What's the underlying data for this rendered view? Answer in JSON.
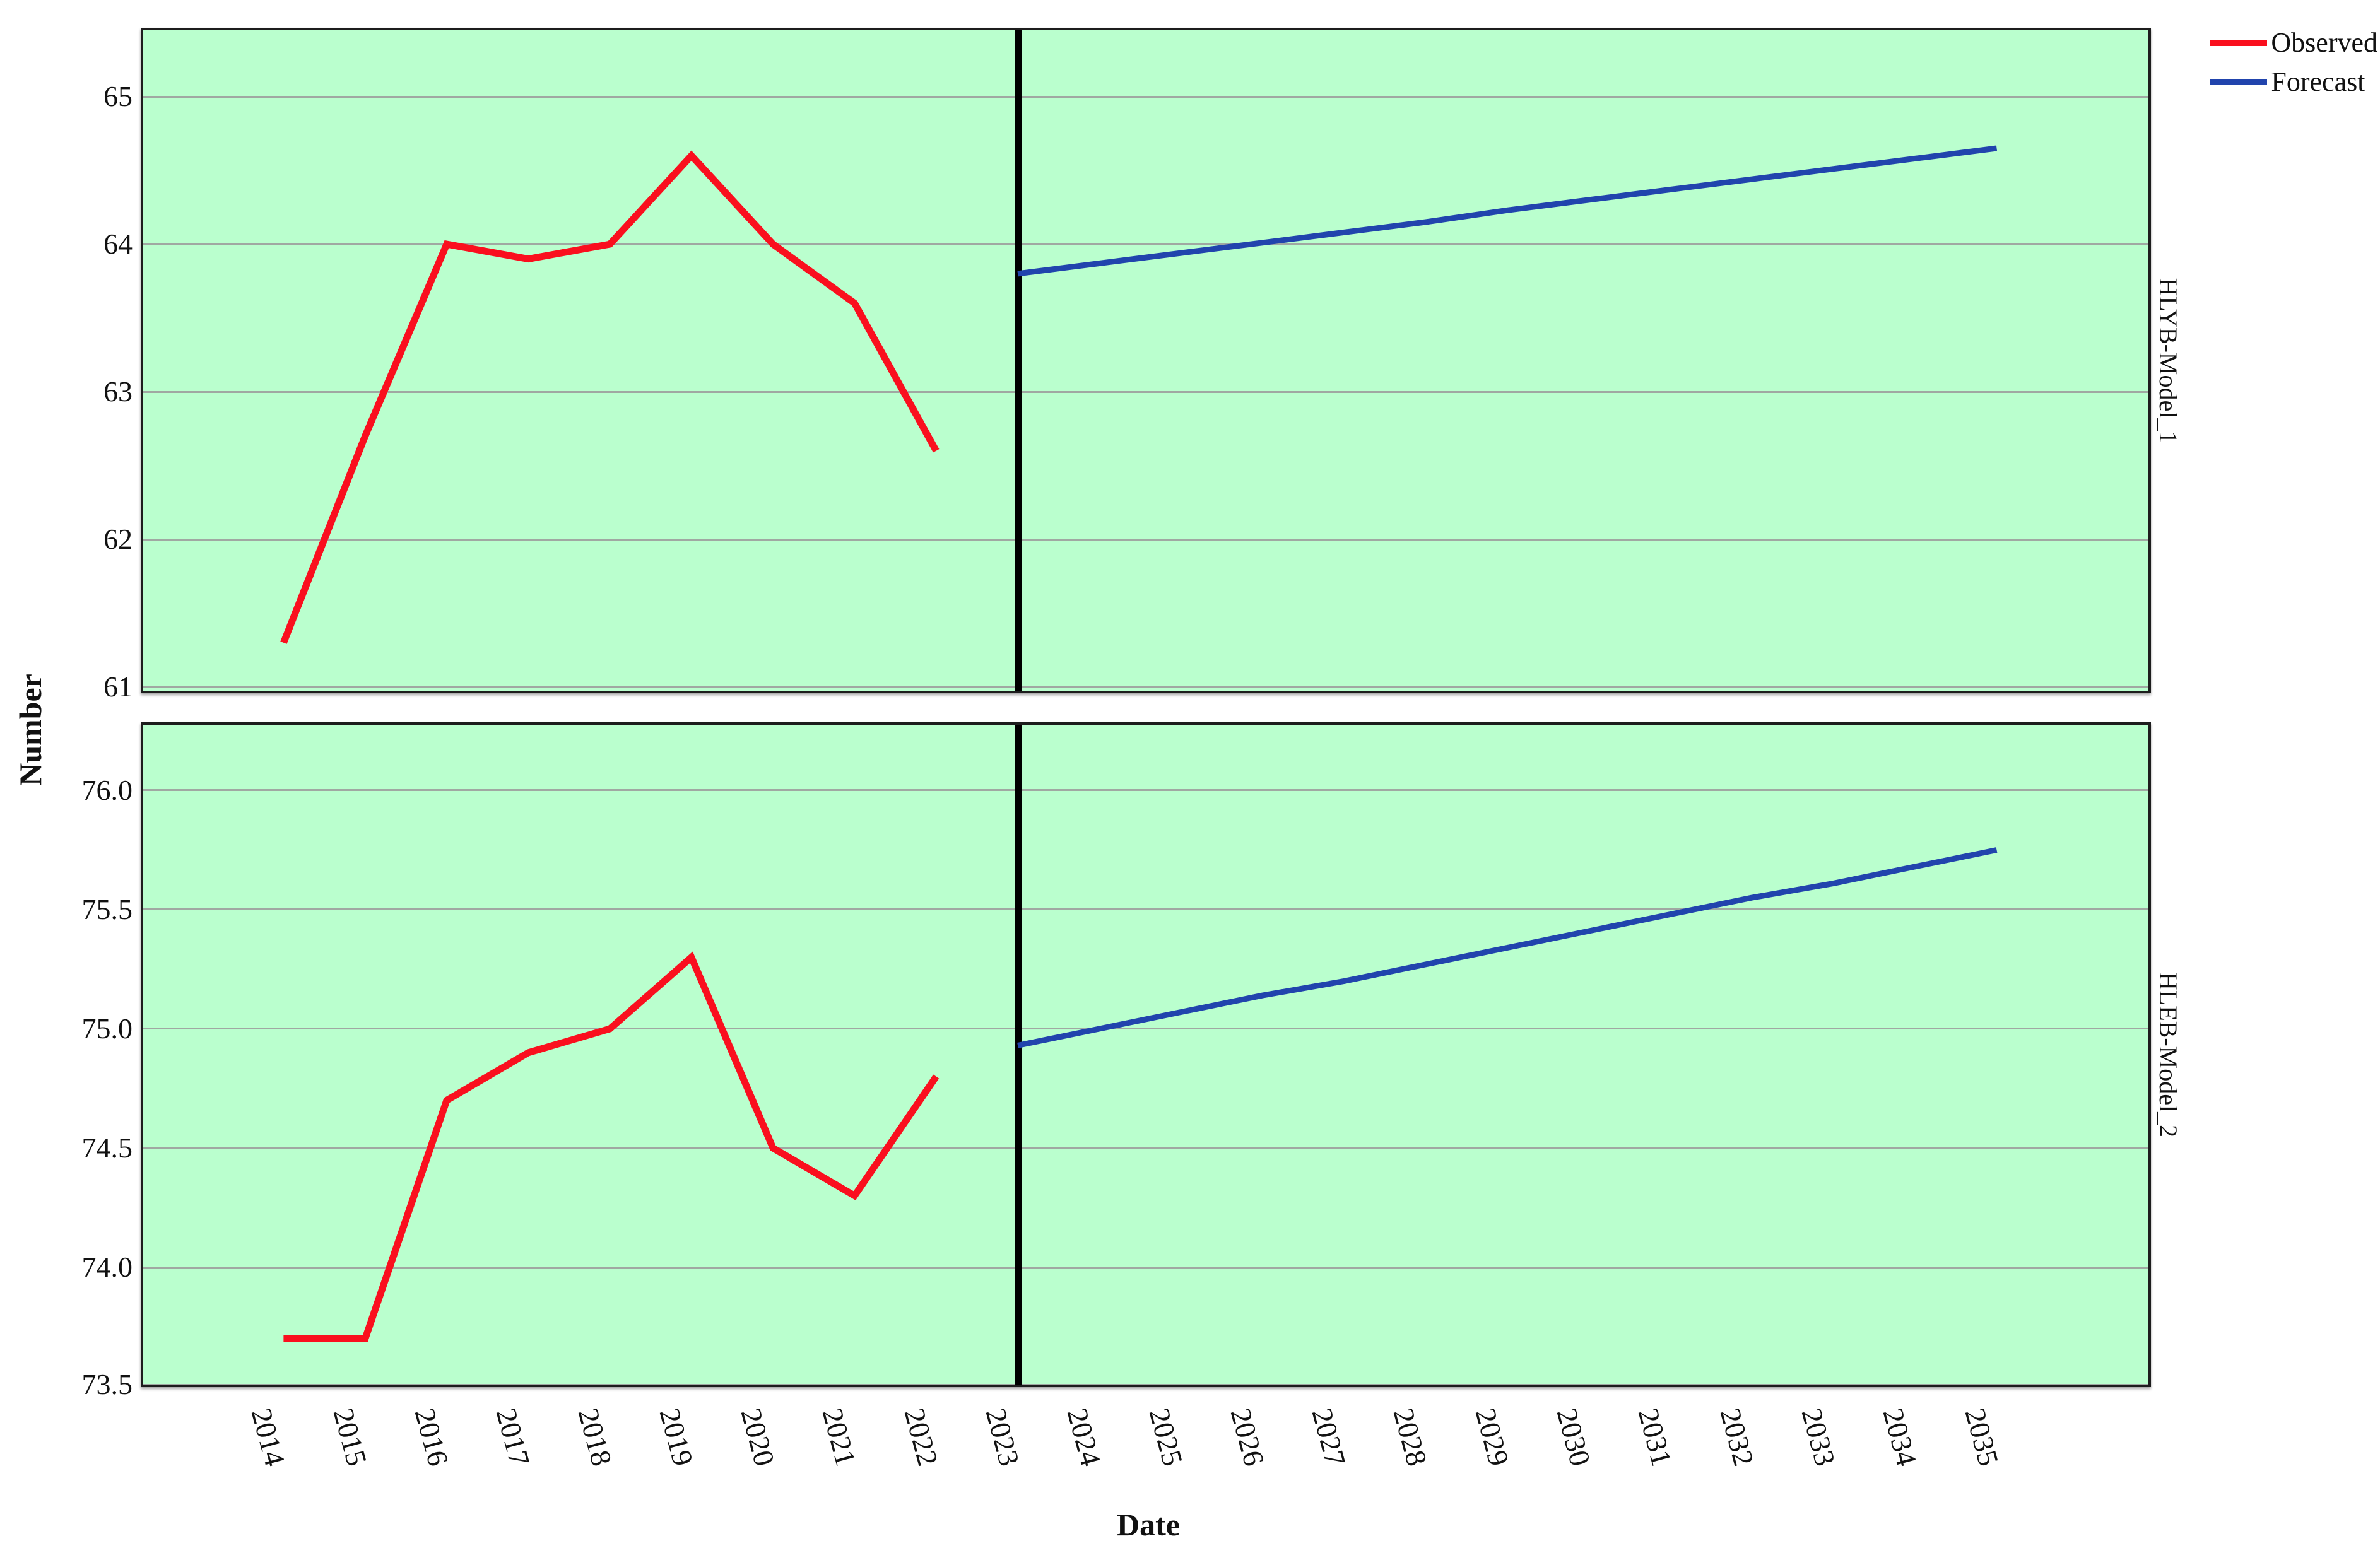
{
  "axes": {
    "y_label": "Number",
    "x_label": "Date"
  },
  "legend": {
    "position": "top-right",
    "items": [
      {
        "label": "Observed",
        "color": "#fa0f1e"
      },
      {
        "label": "Forecast",
        "color": "#2144ad"
      }
    ]
  },
  "colors": {
    "panel_background": "#baffce",
    "gridline": "#a0a8a2",
    "panel_border": "#1d1d1d",
    "separator": "#000000",
    "observed": "#fa0f1e",
    "forecast": "#2144ad"
  },
  "x_ticks": [
    "2014",
    "2015",
    "2016",
    "2017",
    "2018",
    "2019",
    "2020",
    "2021",
    "2022",
    "2023",
    "2024",
    "2025",
    "2026",
    "2027",
    "2028",
    "2029",
    "2030",
    "2031",
    "2032",
    "2033",
    "2034",
    "2035"
  ],
  "chart_data": [
    {
      "type": "line",
      "panel_label": "HLYB-Model_1",
      "ylabel": "Number",
      "xlabel": "Date",
      "y_ticks": [
        "65",
        "64",
        "63",
        "62",
        "61"
      ],
      "y_tick_values": [
        65,
        64,
        63,
        62,
        61
      ],
      "ylim_edges": [
        60.975,
        65.449
      ],
      "xlim_edges": [
        2012.28,
        2036.86
      ],
      "separator_x": 2023,
      "grid": true,
      "series": [
        {
          "name": "Observed",
          "color": "#fa0f1e",
          "x": [
            2014,
            2015,
            2016,
            2017,
            2018,
            2019,
            2020,
            2021,
            2022
          ],
          "values": [
            61.3,
            62.7,
            64.0,
            63.9,
            64.0,
            64.6,
            64.0,
            63.6,
            62.6
          ]
        },
        {
          "name": "Forecast",
          "color": "#2144ad",
          "x": [
            2023,
            2024,
            2025,
            2026,
            2027,
            2028,
            2029,
            2030,
            2031,
            2032,
            2033,
            2034,
            2035
          ],
          "values": [
            63.8,
            63.87,
            63.94,
            64.01,
            64.08,
            64.15,
            64.23,
            64.3,
            64.37,
            64.44,
            64.51,
            64.58,
            64.65
          ]
        }
      ]
    },
    {
      "type": "line",
      "panel_label": "HLEB-Model_2",
      "ylabel": "Number",
      "xlabel": "Date",
      "y_ticks": [
        "76.0",
        "75.5",
        "75.0",
        "74.5",
        "74.0",
        "73.5"
      ],
      "y_tick_values": [
        76.0,
        75.5,
        75.0,
        74.5,
        74.0,
        73.5
      ],
      "ylim_edges": [
        73.508,
        76.275
      ],
      "xlim_edges": [
        2012.28,
        2036.86
      ],
      "separator_x": 2023,
      "grid": true,
      "series": [
        {
          "name": "Observed",
          "color": "#fa0f1e",
          "x": [
            2014,
            2015,
            2016,
            2017,
            2018,
            2019,
            2020,
            2021,
            2022
          ],
          "values": [
            73.7,
            73.7,
            74.7,
            74.9,
            75.0,
            75.3,
            74.5,
            74.3,
            74.8
          ]
        },
        {
          "name": "Forecast",
          "color": "#2144ad",
          "x": [
            2023,
            2024,
            2025,
            2026,
            2027,
            2028,
            2029,
            2030,
            2031,
            2032,
            2033,
            2034,
            2035
          ],
          "values": [
            74.93,
            75.0,
            75.07,
            75.14,
            75.2,
            75.27,
            75.34,
            75.41,
            75.48,
            75.55,
            75.61,
            75.68,
            75.75
          ]
        }
      ]
    }
  ]
}
